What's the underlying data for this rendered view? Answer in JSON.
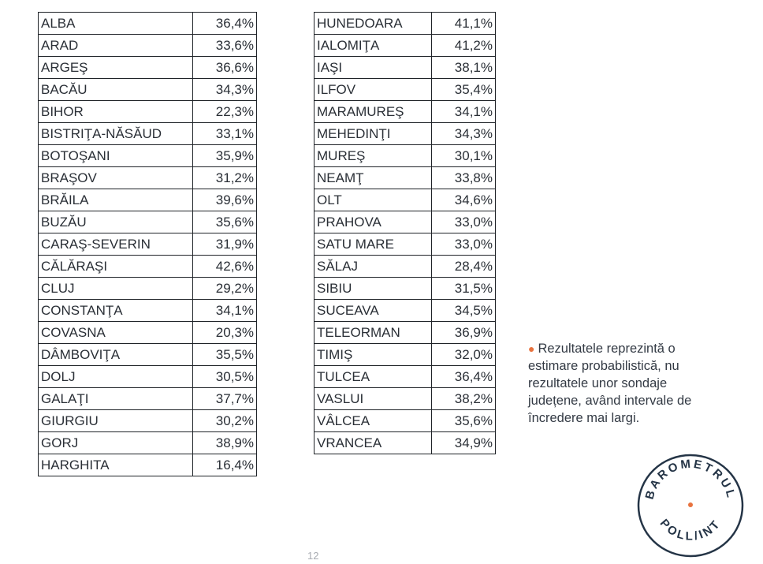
{
  "left_table": [
    [
      "ALBA",
      "36,4%"
    ],
    [
      "ARAD",
      "33,6%"
    ],
    [
      "ARGEŞ",
      "36,6%"
    ],
    [
      "BACĂU",
      "34,3%"
    ],
    [
      "BIHOR",
      "22,3%"
    ],
    [
      "BISTRIŢA-NĂSĂUD",
      "33,1%"
    ],
    [
      "BOTOŞANI",
      "35,9%"
    ],
    [
      "BRAŞOV",
      "31,2%"
    ],
    [
      "BRĂILA",
      "39,6%"
    ],
    [
      "BUZĂU",
      "35,6%"
    ],
    [
      "CARAŞ-SEVERIN",
      "31,9%"
    ],
    [
      "CĂLĂRAŞI",
      "42,6%"
    ],
    [
      "CLUJ",
      "29,2%"
    ],
    [
      "CONSTANŢA",
      "34,1%"
    ],
    [
      "COVASNA",
      "20,3%"
    ],
    [
      "DÂMBOVIŢA",
      "35,5%"
    ],
    [
      "DOLJ",
      "30,5%"
    ],
    [
      "GALAŢI",
      "37,7%"
    ],
    [
      "GIURGIU",
      "30,2%"
    ],
    [
      "GORJ",
      "38,9%"
    ],
    [
      "HARGHITA",
      "16,4%"
    ]
  ],
  "right_table": [
    [
      "HUNEDOARA",
      "41,1%"
    ],
    [
      "IALOMIŢA",
      "41,2%"
    ],
    [
      "IAŞI",
      "38,1%"
    ],
    [
      "ILFOV",
      "35,4%"
    ],
    [
      "MARAMUREŞ",
      "34,1%"
    ],
    [
      "MEHEDINŢI",
      "34,3%"
    ],
    [
      "MUREŞ",
      "30,1%"
    ],
    [
      "NEAMŢ",
      "33,8%"
    ],
    [
      "OLT",
      "34,6%"
    ],
    [
      "PRAHOVA",
      "33,0%"
    ],
    [
      "SATU MARE",
      "33,0%"
    ],
    [
      "SĂLAJ",
      "28,4%"
    ],
    [
      "SIBIU",
      "31,5%"
    ],
    [
      "SUCEAVA",
      "34,5%"
    ],
    [
      "TELEORMAN",
      "36,9%"
    ],
    [
      "TIMIŞ",
      "32,0%"
    ],
    [
      "TULCEA",
      "36,4%"
    ],
    [
      "VASLUI",
      "38,2%"
    ],
    [
      "VÂLCEA",
      "35,6%"
    ],
    [
      "VRANCEA",
      "34,9%"
    ]
  ],
  "note": {
    "bullet": "●",
    "text": "Rezultatele reprezintă o estimare probabilistică, nu rezultatele unor sondaje județene, având intervale de încredere mai largi."
  },
  "page_number": "12",
  "logo": {
    "top_text": "BAROMETRUL",
    "bottom_text": "POLL/INT"
  },
  "colors": {
    "accent": "#e8733f",
    "logo": "#243446"
  }
}
